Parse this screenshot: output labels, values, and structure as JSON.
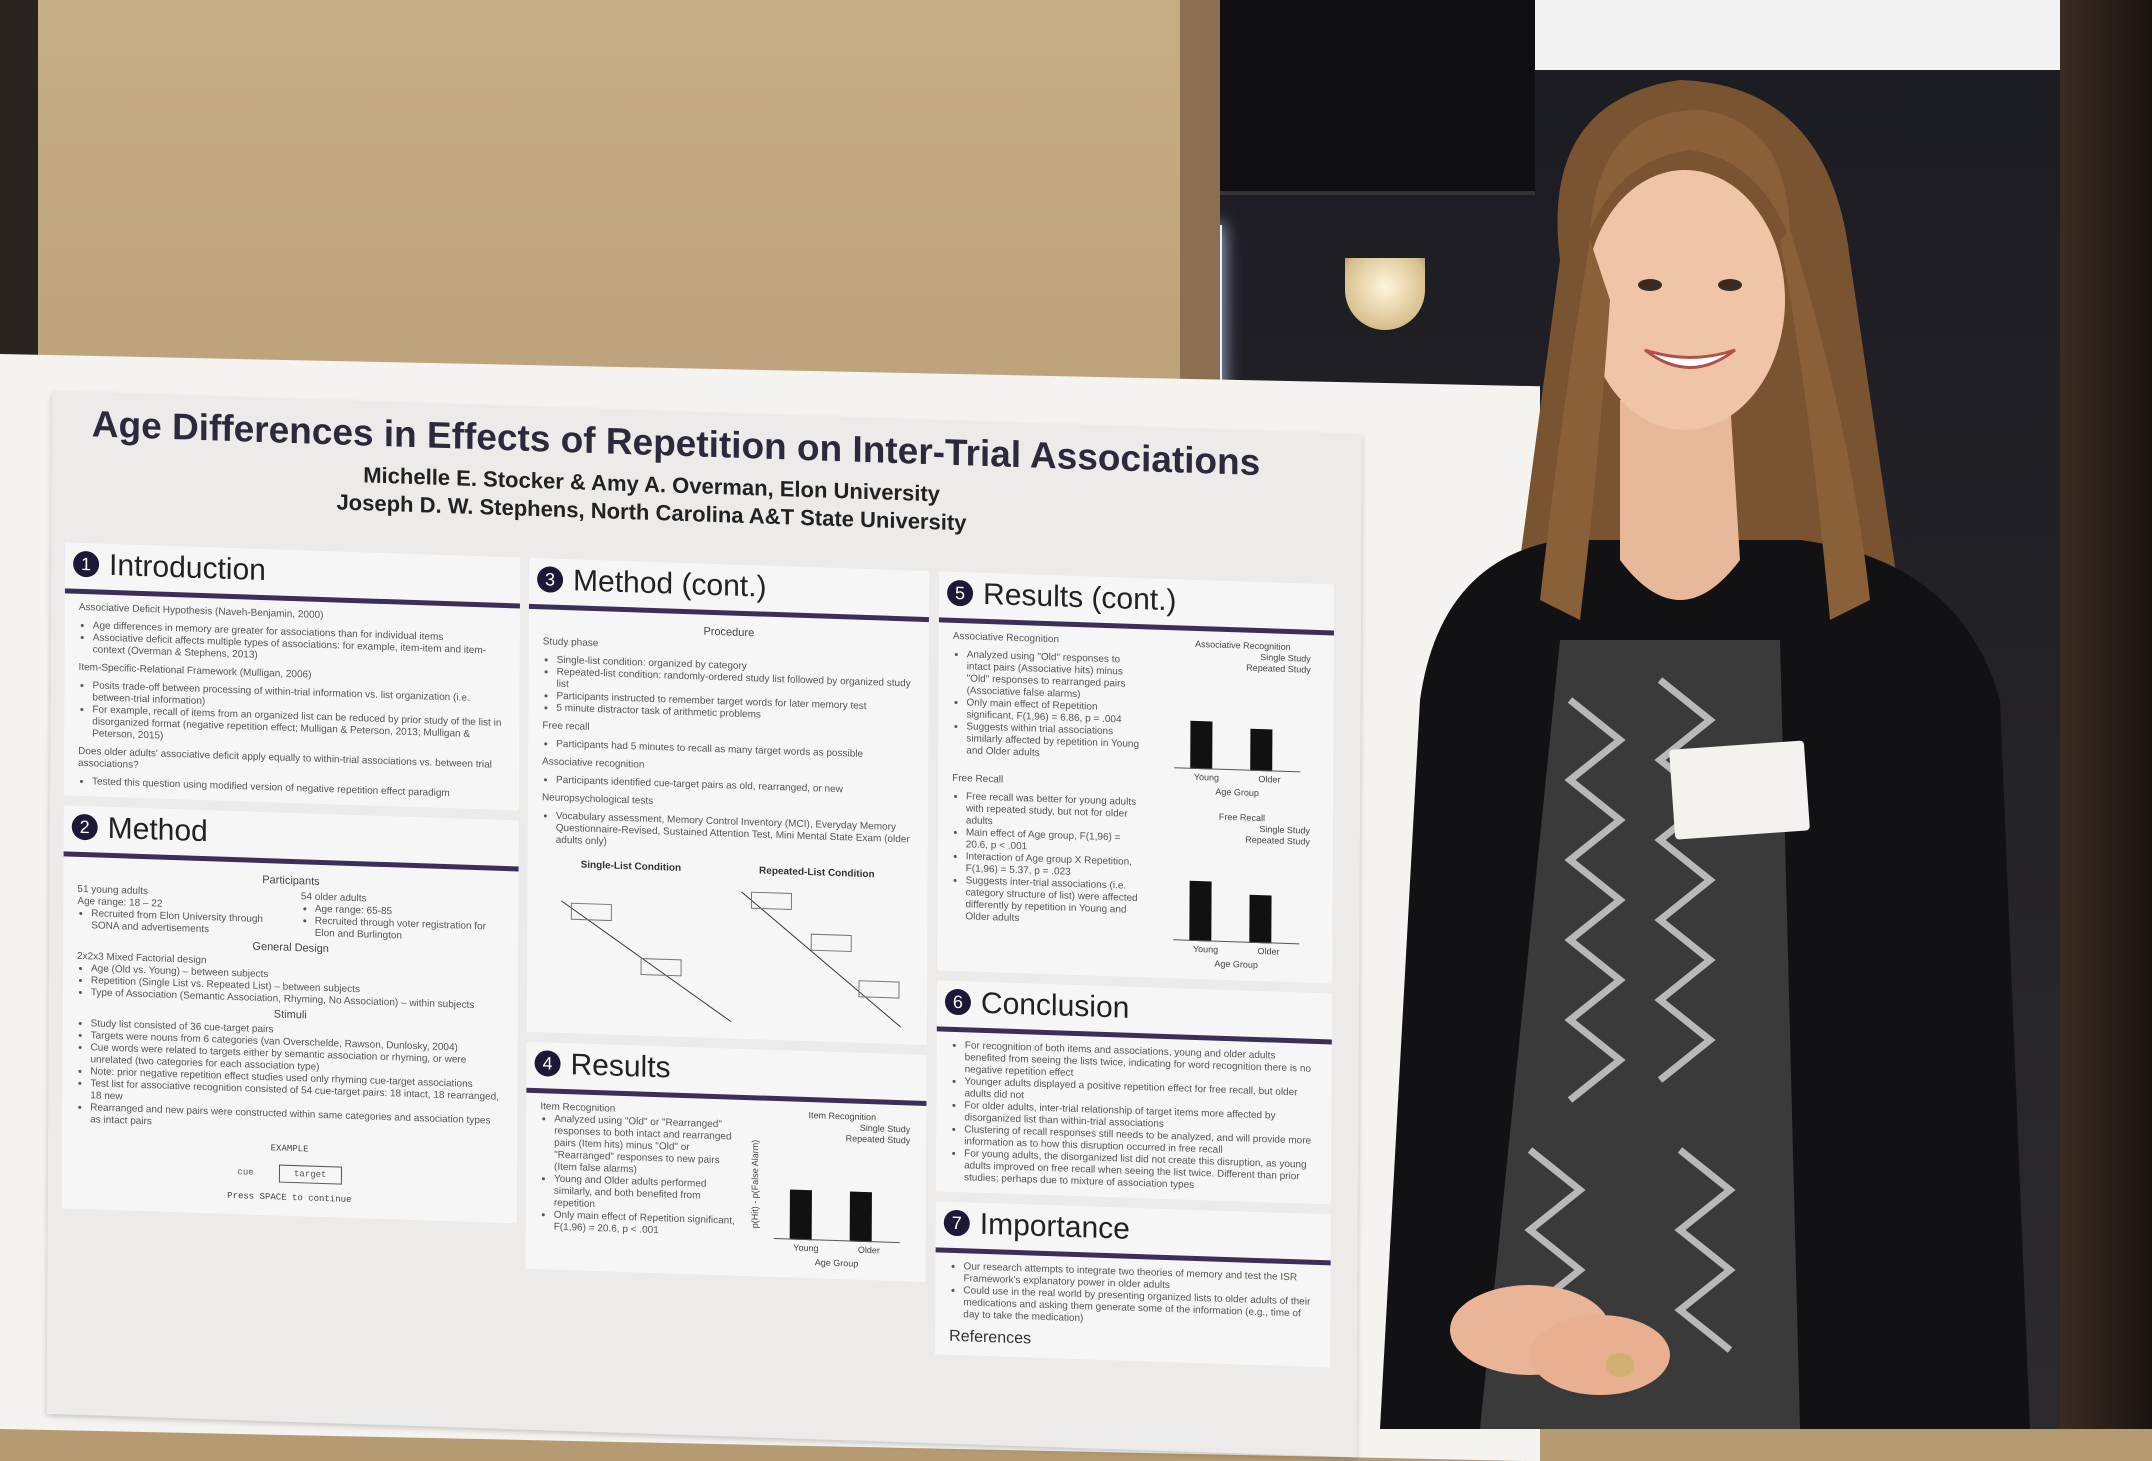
{
  "poster": {
    "title": "Age Differences in Effects of Repetition on Inter-Trial Associations",
    "authors_line1": "Michelle E. Stocker & Amy A. Overman, Elon University",
    "authors_line2": "Joseph D. W. Stephens, North Carolina A&T State University",
    "sections": {
      "introduction": {
        "num": "1",
        "heading": "Introduction",
        "p1": "Associative Deficit Hypothesis (Naveh-Benjamin, 2000)",
        "p1_b1": "Age differences in memory are greater for associations than for individual items",
        "p1_b2": "Associative deficit affects multiple types of associations: for example, item-item and item-context (Overman & Stephens, 2013)",
        "p2": "Item-Specific-Relational Framework (Mulligan, 2006)",
        "p2_b1": "Posits trade-off between processing of within-trial information vs. list organization (i.e. between-trial information)",
        "p2_b2": "For example, recall of items from an organized list can be reduced by prior study of the list in disorganized format (negative repetition effect; Mulligan & Peterson, 2013; Mulligan & Peterson, 2015)",
        "p3": "Does older adults' associative deficit apply equally to within-trial associations vs. between trial associations?",
        "p3_b1": "Tested this question using modified version of negative repetition effect paradigm"
      },
      "method": {
        "num": "2",
        "heading": "Method",
        "participants": "Participants",
        "young": "51 young adults",
        "young_age": "Age range: 18 – 22",
        "young_b1": "Recruited from Elon University through SONA and advertisements",
        "older": "54 older adults",
        "older_age": "Age range: 65-85",
        "older_b1": "Recruited through voter registration for Elon and Burlington",
        "design": "General Design",
        "design_p": "2x2x3 Mixed Factorial design",
        "design_b1": "Age (Old vs. Young) – between subjects",
        "design_b2": "Repetition (Single List vs. Repeated List) – between subjects",
        "design_b3": "Type of Association (Semantic Association, Rhyming, No Association) – within subjects",
        "stimuli": "Stimuli",
        "stim_b1": "Study list consisted of 36 cue-target pairs",
        "stim_b2": "Targets were nouns from 6 categories (van Overschelde, Rawson, Dunlosky, 2004)",
        "stim_b3": "Cue words were related to targets either by semantic association or rhyming, or were unrelated (two categories for each association type)",
        "stim_b4": "Note: prior negative repetition effect studies used only rhyming cue-target associations",
        "stim_b5": "Test list for associative recognition consisted of 54 cue-target pairs: 18 intact, 18 rearranged, 18 new",
        "stim_b6": "Rearranged and new pairs were constructed within same categories and association types as intact pairs",
        "example": "EXAMPLE",
        "example_cue": "cue",
        "example_target": "target",
        "example_continue": "Press SPACE to continue"
      },
      "method_cont": {
        "num": "3",
        "heading": "Method (cont.)",
        "procedure": "Procedure",
        "study": "Study phase",
        "study_b1": "Single-list condition: organized by category",
        "study_b2": "Repeated-list condition: randomly-ordered study list followed by organized study list",
        "study_b3": "Participants instructed to remember target words for later memory test",
        "study_b4": "5 minute distractor task of arithmetic problems",
        "free": "Free recall",
        "free_b1": "Participants had 5 minutes to recall as many target words as possible",
        "assoc": "Associative recognition",
        "assoc_b1": "Participants identified cue-target pairs as old, rearranged, or new",
        "neuro": "Neuropsychological tests",
        "neuro_b1": "Vocabulary assessment, Memory Control Inventory (MCI), Everyday Memory Questionnaire-Revised, Sustained Attention Test, Mini Mental State Exam (older adults only)",
        "single": "Single-List Condition",
        "repeated": "Repeated-List Condition"
      },
      "results": {
        "num": "4",
        "heading": "Results",
        "item": "Item Recognition",
        "b1": "Analyzed using \"Old\" or \"Rearranged\" responses to both intact and rearranged pairs (Item hits) minus \"Old\" or \"Rearranged\" responses to new pairs (Item false alarms)",
        "b2": "Young and Older adults performed similarly, and both benefited from repetition",
        "b3": "Only main effect of Repetition significant, F(1,96) = 20.6, p < .001",
        "chart_title": "Item Recognition",
        "legend1": "Single Study",
        "legend2": "Repeated Study",
        "ylabel": "p(Hit) - p(False Alarm)",
        "xlabel": "Age Group",
        "x1": "Young",
        "x2": "Older"
      },
      "results_cont": {
        "num": "5",
        "heading": "Results (cont.)",
        "assoc": "Associative Recognition",
        "a_b1": "Analyzed using \"Old\" responses to intact pairs (Associative hits) minus \"Old\" responses to rearranged pairs (Associative false alarms)",
        "a_b2": "Only main effect of Repetition significant, F(1,96) = 6.86, p = .004",
        "a_b3": "Suggests within trial associations similarly affected by repetition in Young and Older adults",
        "free": "Free Recall",
        "f_b1": "Free recall was better for young adults with repeated study, but not for older adults",
        "f_b2": "Main effect of Age group, F(1,96) = 20.6, p < .001",
        "f_b3": "Interaction of Age group X Repetition, F(1,96) = 5.37, p = .023",
        "f_b4": "Suggests inter-trial associations (i.e. category structure of list) were affected differently by repetition in Young and Older adults",
        "chart1_title": "Associative Recognition",
        "chart2_title": "Free Recall",
        "legend1": "Single Study",
        "legend2": "Repeated Study",
        "xlabel": "Age Group",
        "x1": "Young",
        "x2": "Older"
      },
      "conclusion": {
        "num": "6",
        "heading": "Conclusion",
        "b1": "For recognition of both items and associations, young and older adults benefited from seeing the lists twice, indicating for word recognition there is no negative repetition effect",
        "b2": "Younger adults displayed a positive repetition effect for free recall, but older adults did not",
        "b3": "For older adults, inter-trial relationship of target items more affected by disorganized list than within-trial associations",
        "b4": "Clustering of recall responses still needs to be analyzed, and will provide more information as to how this disruption occurred in free recall",
        "b5": "For young adults, the disorganized list did not create this disruption, as young adults improved on free recall when seeing the list twice. Different than prior studies; perhaps due to mixture of association types"
      },
      "importance": {
        "num": "7",
        "heading": "Importance",
        "b1": "Our research attempts to integrate two theories of memory and test the ISR Framework's explanatory power in older adults",
        "b2": "Could use in the real world by presenting organized lists to older adults of their medications and asking them generate some of the information (e.g., time of day to take the medication)",
        "references": "References"
      }
    }
  },
  "colors": {
    "accent": "#3b2e5a",
    "wall": "#b59a72",
    "poster_bg": "#ecebea"
  }
}
